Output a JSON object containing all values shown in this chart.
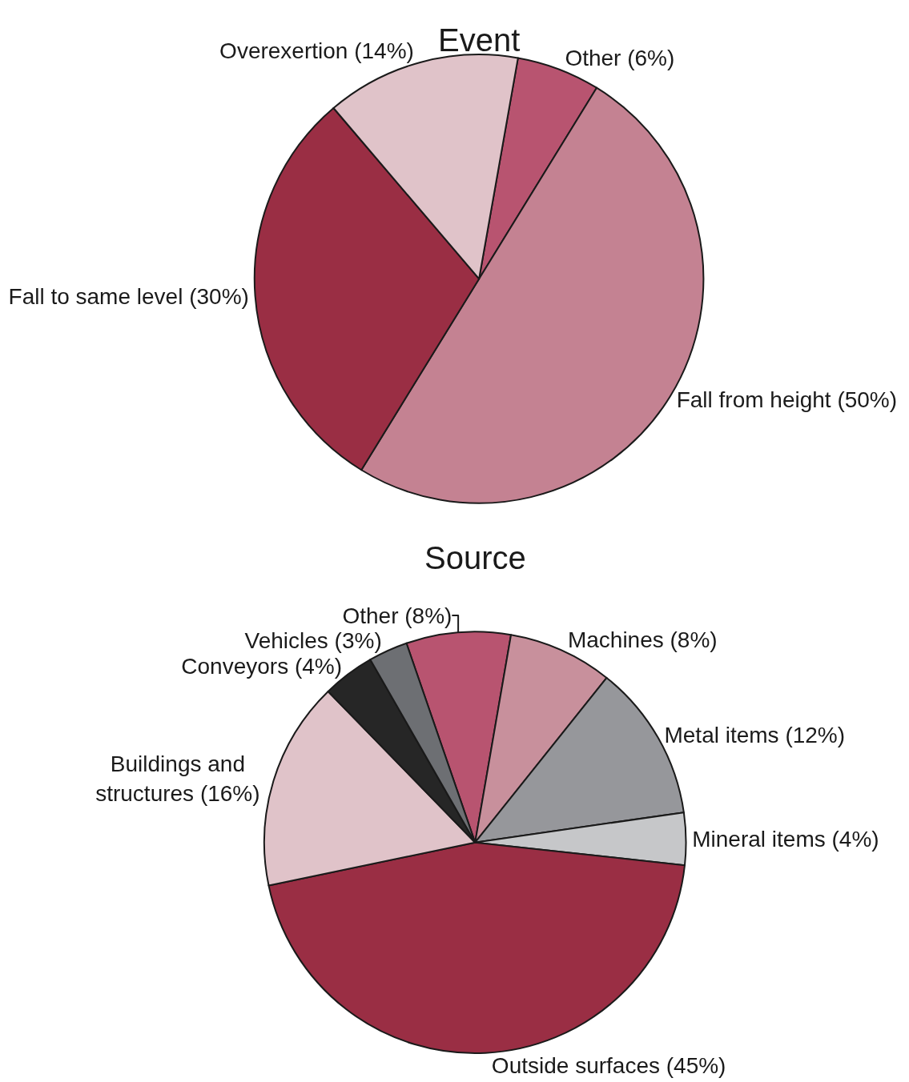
{
  "chart_data": [
    {
      "type": "pie",
      "title": "Event",
      "categories": [
        "Other (6%)",
        "Fall from height (50%)",
        "Fall to same level (30%)",
        "Overexertion (14%)"
      ],
      "values": [
        6,
        50,
        30,
        14
      ],
      "colors": [
        "#b85470",
        "#c48292",
        "#9a2e44",
        "#e0c3c9"
      ]
    },
    {
      "type": "pie",
      "title": "Source",
      "categories": [
        "Other (8%)",
        "Machines (8%)",
        "Metal items (12%)",
        "Mineral items (4%)",
        "Outside surfaces (45%)",
        "Buildings and\nstructures (16%)",
        "Conveyors (4%)",
        "Vehicles (3%)"
      ],
      "values": [
        8,
        8,
        12,
        4,
        45,
        16,
        4,
        3
      ],
      "colors": [
        "#b85470",
        "#c8909c",
        "#96979b",
        "#c6c7c9",
        "#9a2e44",
        "#e0c3c9",
        "#262626",
        "#6d6f73"
      ]
    }
  ]
}
